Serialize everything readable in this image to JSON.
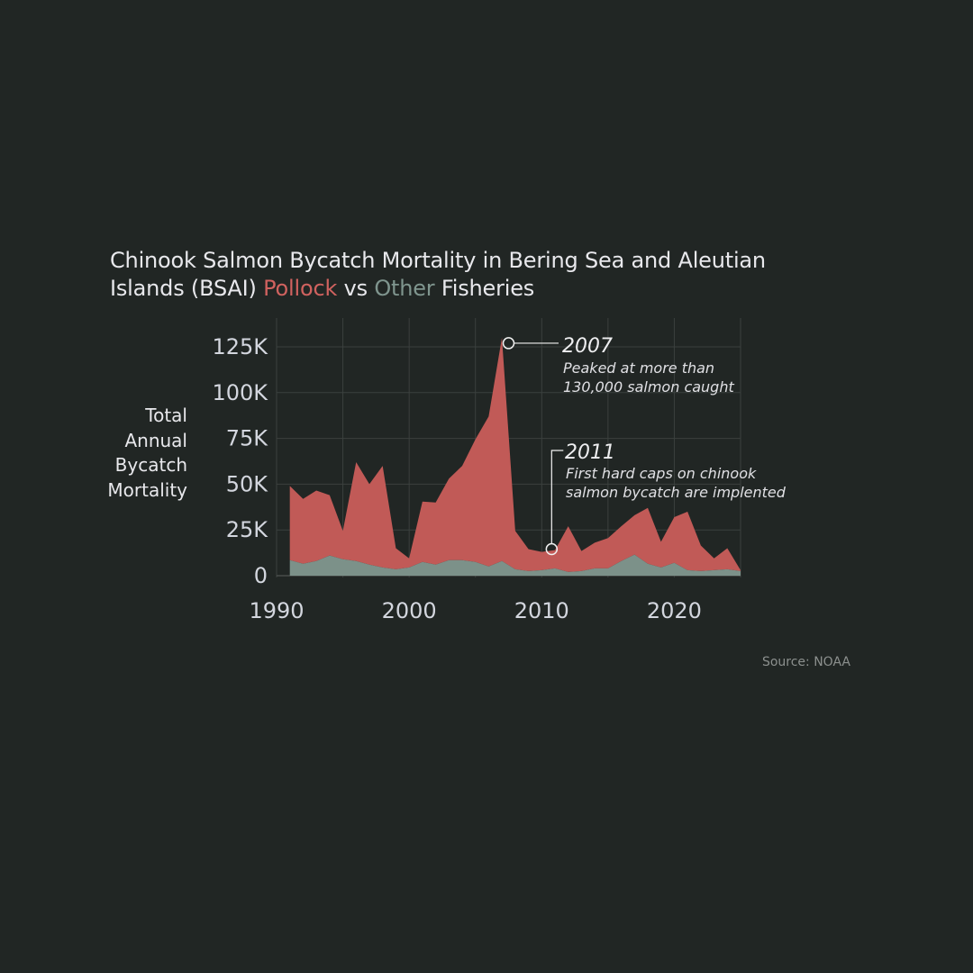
{
  "title": {
    "line1": "Chinook Salmon Bycatch Mortality in Bering Sea and Aleutian",
    "line2_prefix": "Islands (BSAI) ",
    "pollock": "Pollock",
    "vs": " vs ",
    "other": "Other",
    "suffix": " Fisheries"
  },
  "ylabel": [
    "Total",
    "Annual",
    "Bycatch",
    "Mortality"
  ],
  "source": "Source: NOAA",
  "colors": {
    "pollock": "#c15a57",
    "other": "#7c9189",
    "background": "#212624",
    "grid": "#3b403e",
    "text": "#d3d6de"
  },
  "chart_data": {
    "type": "area",
    "stacked": true,
    "title": "Chinook Salmon Bycatch Mortality in Bering Sea and Aleutian Islands (BSAI) Pollock vs Other Fisheries",
    "ylabel": "Total Annual Bycatch Mortality",
    "xlabel": "",
    "xlim": [
      1990,
      2025
    ],
    "ylim": [
      0,
      125000
    ],
    "x_ticks": [
      1990,
      2000,
      2010,
      2020
    ],
    "y_ticks": [
      {
        "value": 0,
        "label": "0"
      },
      {
        "value": 25000,
        "label": "25K"
      },
      {
        "value": 50000,
        "label": "50K"
      },
      {
        "value": 75000,
        "label": "75K"
      },
      {
        "value": 100000,
        "label": "100K"
      },
      {
        "value": 125000,
        "label": "125K"
      }
    ],
    "grid": true,
    "x": [
      1991,
      1992,
      1993,
      1994,
      1995,
      1996,
      1997,
      1998,
      1999,
      2000,
      2001,
      2002,
      2003,
      2004,
      2005,
      2006,
      2007,
      2008,
      2009,
      2010,
      2011,
      2012,
      2013,
      2014,
      2015,
      2016,
      2017,
      2018,
      2019,
      2020,
      2021,
      2022,
      2023,
      2024,
      2025
    ],
    "series": [
      {
        "name": "Other",
        "values": [
          8500,
          6500,
          8000,
          11000,
          9000,
          8000,
          6000,
          4500,
          3500,
          4500,
          7500,
          6000,
          8500,
          8500,
          7500,
          5000,
          8000,
          3500,
          2500,
          3000,
          4000,
          2000,
          2500,
          4000,
          4000,
          8000,
          11500,
          6500,
          4500,
          7000,
          3000,
          2500,
          3000,
          3500,
          2500
        ]
      },
      {
        "name": "Pollock",
        "values": [
          40500,
          35500,
          38500,
          33000,
          15500,
          54000,
          44000,
          55500,
          11500,
          5000,
          33000,
          34000,
          44500,
          51500,
          67000,
          82000,
          122000,
          21000,
          12000,
          10000,
          10000,
          25000,
          11000,
          14000,
          16500,
          19000,
          21500,
          30500,
          14000,
          25000,
          32000,
          14000,
          6500,
          11500,
          500
        ]
      }
    ],
    "annotations": [
      {
        "x": 2007.5,
        "y": 127000,
        "year": "2007",
        "lines": [
          "Peaked at more than",
          "130,000 salmon caught"
        ]
      },
      {
        "x": 2010.75,
        "y": 14500,
        "year": "2011",
        "lines": [
          "First hard caps on chinook",
          "salmon bycatch are implented"
        ]
      }
    ]
  }
}
